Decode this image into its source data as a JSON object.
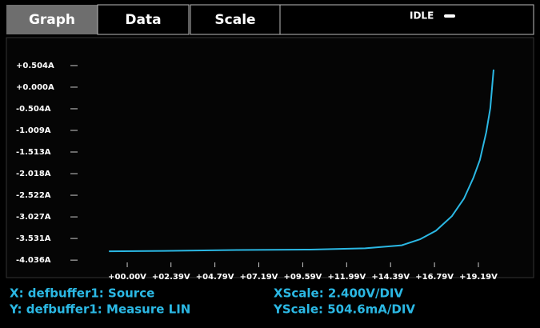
{
  "tabs": [
    "Graph",
    "Data",
    "Scale"
  ],
  "status": "IDLE",
  "chart_data": {
    "type": "line",
    "x": [
      -1.0,
      2.0,
      6.0,
      10.0,
      13.0,
      15.0,
      16.0,
      16.87,
      17.74,
      18.4,
      18.92,
      19.27,
      19.62,
      19.84,
      20.02
    ],
    "series": [
      {
        "color": "#2bb8e4",
        "values": [
          -3.83,
          -3.82,
          -3.8,
          -3.79,
          -3.76,
          -3.69,
          -3.55,
          -3.35,
          -3.01,
          -2.6,
          -2.11,
          -1.7,
          -1.05,
          -0.49,
          0.41
        ]
      }
    ],
    "xlim": [
      -2.8,
      21.9
    ],
    "ylim": [
      -4.22,
      0.69
    ],
    "xticks": [
      {
        "value": 0,
        "label": "+00.00V"
      },
      {
        "value": 2.39,
        "label": "+02.39V"
      },
      {
        "value": 4.79,
        "label": "+04.79V"
      },
      {
        "value": 7.19,
        "label": "+07.19V"
      },
      {
        "value": 9.59,
        "label": "+09.59V"
      },
      {
        "value": 11.99,
        "label": "+11.99V"
      },
      {
        "value": 14.39,
        "label": "+14.39V"
      },
      {
        "value": 16.79,
        "label": "+16.79V"
      },
      {
        "value": 19.19,
        "label": "+19.19V"
      }
    ],
    "yticks": [
      {
        "value": 0.504,
        "label": "+0.504A"
      },
      {
        "value": 0,
        "label": "+0.000A"
      },
      {
        "value": -0.504,
        "label": "-0.504A"
      },
      {
        "value": -1.009,
        "label": "-1.009A"
      },
      {
        "value": -1.513,
        "label": "-1.513A"
      },
      {
        "value": -2.018,
        "label": "-2.018A"
      },
      {
        "value": -2.522,
        "label": "-2.522A"
      },
      {
        "value": -3.027,
        "label": "-3.027A"
      },
      {
        "value": -3.531,
        "label": "-3.531A"
      },
      {
        "value": -4.036,
        "label": "-4.036A"
      }
    ]
  },
  "footer": {
    "x_source": "X: defbuffer1: Source",
    "y_source": "Y: defbuffer1: Measure LIN",
    "x_scale": "XScale: 2.400V/DIV",
    "y_scale": "YScale: 504.6mA/DIV"
  }
}
